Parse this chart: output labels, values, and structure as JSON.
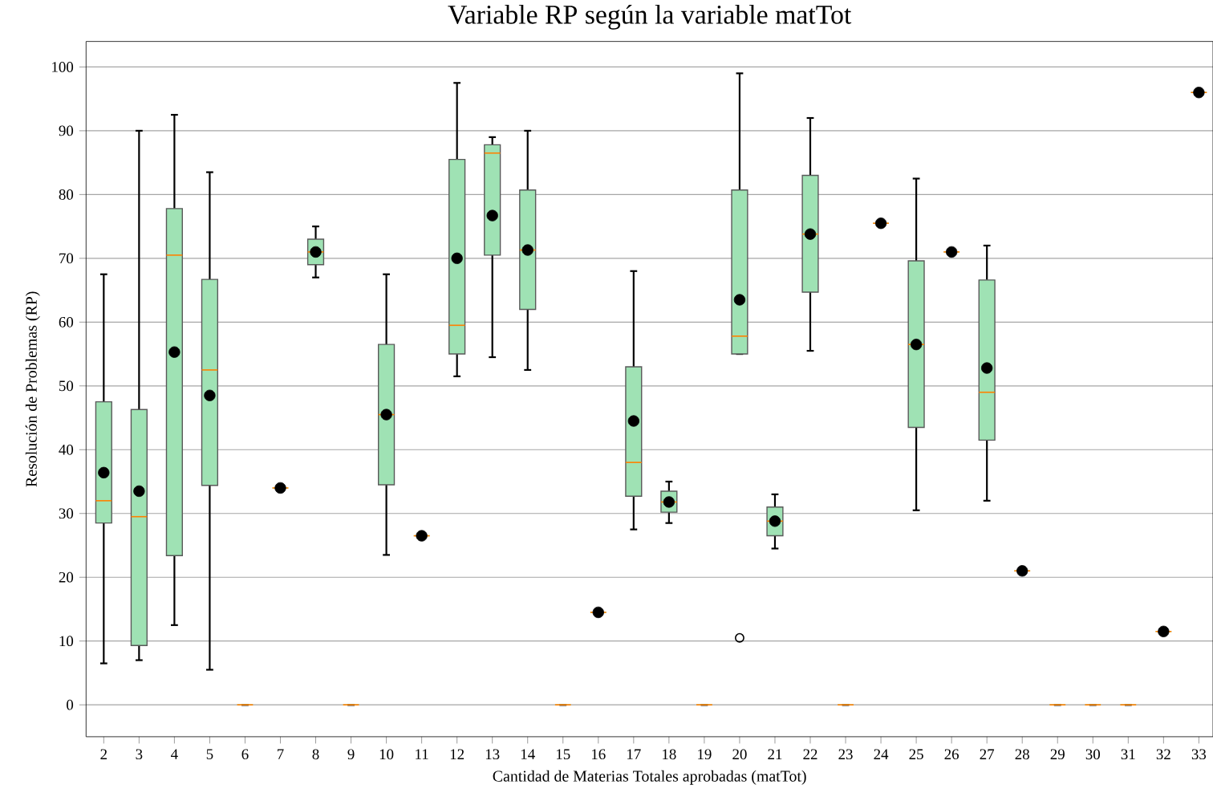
{
  "chart_data": {
    "type": "box",
    "title": "Variable RP según la variable matTot",
    "xlabel": "Cantidad de Materias Totales aprobadas (matTot)",
    "ylabel": "Resolución de Problemas (RP)",
    "categories": [
      "2",
      "3",
      "4",
      "5",
      "6",
      "7",
      "8",
      "9",
      "10",
      "11",
      "12",
      "13",
      "14",
      "15",
      "16",
      "17",
      "18",
      "19",
      "20",
      "21",
      "22",
      "23",
      "24",
      "25",
      "26",
      "27",
      "28",
      "29",
      "30",
      "31",
      "32",
      "33"
    ],
    "ylim": [
      -5,
      104
    ],
    "yticks": [
      0,
      10,
      20,
      30,
      40,
      50,
      60,
      70,
      80,
      90,
      100
    ],
    "grid": "y",
    "marker": "circle",
    "series": [
      {
        "color": "#9fe2b4",
        "boxes": [
          {
            "low": 6.5,
            "q1": 28.5,
            "median": 32,
            "q3": 47.5,
            "high": 67.5
          },
          {
            "low": 7,
            "q1": 9.3,
            "median": 29.5,
            "q3": 46.3,
            "high": 90
          },
          {
            "low": 12.5,
            "q1": 23.4,
            "median": 70.5,
            "q3": 77.8,
            "high": 92.5
          },
          {
            "low": 5.5,
            "q1": 34.4,
            "median": 52.5,
            "q3": 66.7,
            "high": 83.5
          },
          {
            "low": 0,
            "q1": 0,
            "median": 0,
            "q3": 0,
            "high": 0
          },
          {
            "low": 34,
            "q1": 34,
            "median": 34,
            "q3": 34,
            "high": 34
          },
          {
            "low": 67,
            "q1": 69,
            "median": 71,
            "q3": 73,
            "high": 75
          },
          {
            "low": 0,
            "q1": 0,
            "median": 0,
            "q3": 0,
            "high": 0
          },
          {
            "low": 23.5,
            "q1": 34.5,
            "median": 45.5,
            "q3": 56.5,
            "high": 67.5
          },
          {
            "low": 26.5,
            "q1": 26.5,
            "median": 26.5,
            "q3": 26.5,
            "high": 26.5
          },
          {
            "low": 51.5,
            "q1": 55,
            "median": 59.5,
            "q3": 85.5,
            "high": 97.5
          },
          {
            "low": 54.5,
            "q1": 70.5,
            "median": 86.5,
            "q3": 87.8,
            "high": 89
          },
          {
            "low": 52.5,
            "q1": 62,
            "median": 71.3,
            "q3": 80.7,
            "high": 90
          },
          {
            "low": 0,
            "q1": 0,
            "median": 0,
            "q3": 0,
            "high": 0
          },
          {
            "low": 14.5,
            "q1": 14.5,
            "median": 14.5,
            "q3": 14.5,
            "high": 14.5
          },
          {
            "low": 27.5,
            "q1": 32.7,
            "median": 38,
            "q3": 53,
            "high": 68
          },
          {
            "low": 28.5,
            "q1": 30.2,
            "median": 31.8,
            "q3": 33.5,
            "high": 35
          },
          {
            "low": 0,
            "q1": 0,
            "median": 0,
            "q3": 0,
            "high": 0
          },
          {
            "low": 55,
            "q1": 55,
            "median": 57.8,
            "q3": 80.7,
            "high": 99,
            "outliers": [
              10.5
            ]
          },
          {
            "low": 24.5,
            "q1": 26.5,
            "median": 28.8,
            "q3": 31,
            "high": 33
          },
          {
            "low": 55.5,
            "q1": 64.7,
            "median": 73.8,
            "q3": 83,
            "high": 92
          },
          {
            "low": 0,
            "q1": 0,
            "median": 0,
            "q3": 0,
            "high": 0
          },
          {
            "low": 75.5,
            "q1": 75.5,
            "median": 75.5,
            "q3": 75.5,
            "high": 75.5
          },
          {
            "low": 30.5,
            "q1": 43.5,
            "median": 56.5,
            "q3": 69.6,
            "high": 82.5
          },
          {
            "low": 71,
            "q1": 71,
            "median": 71,
            "q3": 71,
            "high": 71
          },
          {
            "low": 32,
            "q1": 41.5,
            "median": 49,
            "q3": 66.6,
            "high": 72
          },
          {
            "low": 21,
            "q1": 21,
            "median": 21,
            "q3": 21,
            "high": 21
          },
          {
            "low": 0,
            "q1": 0,
            "median": 0,
            "q3": 0,
            "high": 0
          },
          {
            "low": 0,
            "q1": 0,
            "median": 0,
            "q3": 0,
            "high": 0
          },
          {
            "low": 0,
            "q1": 0,
            "median": 0,
            "q3": 0,
            "high": 0
          },
          {
            "low": 11.5,
            "q1": 11.5,
            "median": 11.5,
            "q3": 11.5,
            "high": 11.5
          },
          {
            "low": 96,
            "q1": 96,
            "median": 96,
            "q3": 96,
            "high": 96
          }
        ]
      },
      {
        "type": "scatter",
        "color": "#000000",
        "values": [
          36.4,
          33.5,
          55.3,
          48.5,
          null,
          34,
          71,
          null,
          45.5,
          26.5,
          70,
          76.7,
          71.3,
          null,
          14.5,
          44.5,
          31.8,
          null,
          63.5,
          28.8,
          73.8,
          null,
          75.5,
          56.5,
          71,
          52.8,
          21,
          null,
          null,
          null,
          11.5,
          96
        ]
      }
    ]
  }
}
